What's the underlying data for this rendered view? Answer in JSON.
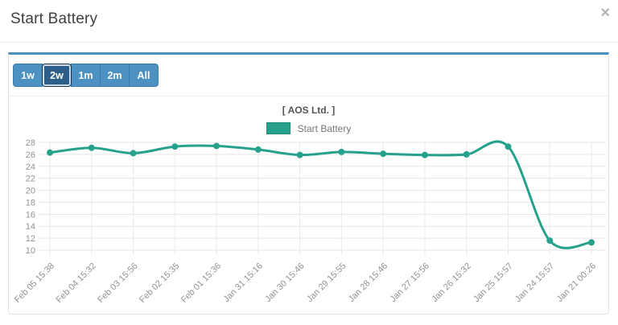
{
  "modal": {
    "title": "Start Battery",
    "close_glyph": "×"
  },
  "range_buttons": [
    {
      "label": "1w",
      "active": false
    },
    {
      "label": "2w",
      "active": true
    },
    {
      "label": "1m",
      "active": false
    },
    {
      "label": "2m",
      "active": false
    },
    {
      "label": "All",
      "active": false
    }
  ],
  "colors": {
    "accent_blue": "#4a90c2",
    "button_bg": "#4b92c3",
    "button_border": "#3d7ca8",
    "button_active_bg": "#2c5f8a",
    "button_active_border": "#16354d",
    "line": "#26a28c",
    "swatch_border": "#1f8f7a",
    "grid": "#e5e5e5",
    "grid_vertical": "#eaeaea",
    "tick_text": "#929292",
    "close": "#b3b3b3"
  },
  "chart_data": {
    "type": "line",
    "title": "[ AOS Ltd. ]",
    "categories": [
      "Feb 05 15:38",
      "Feb 04 15:32",
      "Feb 03 15:56",
      "Feb 02 15:35",
      "Feb 01 15:36",
      "Jan 31 15:16",
      "Jan 30 15:46",
      "Jan 29 15:55",
      "Jan 28 15:46",
      "Jan 27 15:56",
      "Jan 26 15:32",
      "Jan 25 15:57",
      "Jan 24 15:57",
      "Jan 21 00:26"
    ],
    "series": [
      {
        "name": "Start Battery",
        "color": "#26a28c",
        "values": [
          26.3,
          27.1,
          26.2,
          27.3,
          27.4,
          26.8,
          25.9,
          26.4,
          26.1,
          25.9,
          26.0,
          27.3,
          11.6,
          11.3
        ]
      }
    ],
    "ylim": [
      10,
      28
    ],
    "ytick_step": 2,
    "x_label_rotation": -45,
    "grid": true,
    "smooth": true,
    "markers": true,
    "legend_position": "top"
  }
}
